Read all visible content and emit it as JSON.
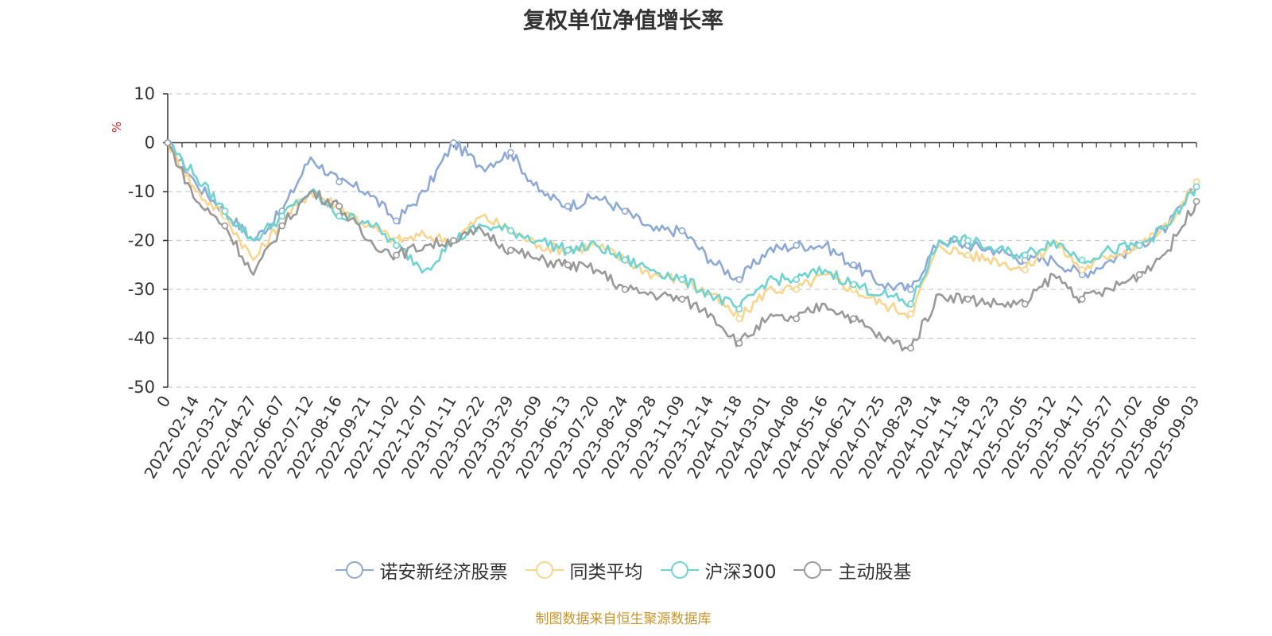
{
  "chart_data": {
    "type": "line",
    "title": "复权单位净值增长率",
    "ylabel": "%",
    "xlabel": "",
    "ylim": [
      -50,
      10
    ],
    "yticks": [
      10,
      0,
      -10,
      -20,
      -30,
      -40,
      -50
    ],
    "grid": true,
    "legend_position": "bottom",
    "categories": [
      "0",
      "2022-02-14",
      "2022-03-21",
      "2022-04-27",
      "2022-06-07",
      "2022-07-12",
      "2022-08-16",
      "2022-09-21",
      "2022-11-02",
      "2022-12-07",
      "2023-01-11",
      "2023-02-22",
      "2023-03-29",
      "2023-05-09",
      "2023-06-13",
      "2023-07-20",
      "2023-08-24",
      "2023-09-28",
      "2023-11-09",
      "2023-12-14",
      "2024-01-18",
      "2024-03-01",
      "2024-04-08",
      "2024-05-16",
      "2024-06-21",
      "2024-07-25",
      "2024-08-29",
      "2024-10-14",
      "2024-11-18",
      "2024-12-23",
      "2025-02-05",
      "2025-03-12",
      "2025-04-17",
      "2025-05-27",
      "2025-07-02",
      "2025-08-06",
      "2025-09-03"
    ],
    "series": [
      {
        "name": "诺安新经济股票",
        "color": "#8fa9d6",
        "values": [
          0,
          -8.5,
          -14,
          -20,
          -14,
          -3,
          -8,
          -10,
          -16,
          -10,
          0,
          -5,
          -2,
          -10,
          -13,
          -11,
          -14,
          -18,
          -18,
          -24,
          -28,
          -22,
          -21,
          -21,
          -25,
          -29,
          -30,
          -20,
          -21,
          -22,
          -24,
          -24,
          -27,
          -24,
          -21,
          -17,
          -9
        ]
      },
      {
        "name": "同类平均",
        "color": "#f9d58e",
        "values": [
          0,
          -10,
          -15,
          -24,
          -16,
          -10,
          -13,
          -17,
          -20,
          -19,
          -20,
          -15,
          -18,
          -21,
          -22,
          -21,
          -24,
          -27,
          -28,
          -31,
          -36,
          -30,
          -30,
          -27,
          -30,
          -33,
          -35,
          -21,
          -23,
          -24,
          -26,
          -20,
          -26,
          -23,
          -21,
          -17,
          -8
        ]
      },
      {
        "name": "沪深300",
        "color": "#6fd3d1",
        "values": [
          0,
          -7,
          -14,
          -20,
          -15,
          -10,
          -15,
          -16,
          -21,
          -26,
          -20,
          -17,
          -18,
          -20,
          -22,
          -21,
          -24,
          -26,
          -28,
          -31,
          -34,
          -28,
          -28,
          -26,
          -29,
          -31,
          -33,
          -20,
          -20,
          -22,
          -23,
          -20,
          -24,
          -22,
          -21,
          -17,
          -9
        ]
      },
      {
        "name": "主动股基",
        "color": "#999999",
        "values": [
          0,
          -12,
          -17,
          -27,
          -17,
          -10,
          -13,
          -20,
          -23,
          -21,
          -20,
          -18,
          -22,
          -24,
          -25,
          -26,
          -30,
          -31,
          -32,
          -35,
          -41,
          -36,
          -36,
          -33,
          -36,
          -40,
          -42,
          -31,
          -32,
          -33,
          -33,
          -27,
          -32,
          -30,
          -27,
          -22,
          -12
        ]
      }
    ]
  },
  "source_note": "制图数据来自恒生聚源数据库"
}
